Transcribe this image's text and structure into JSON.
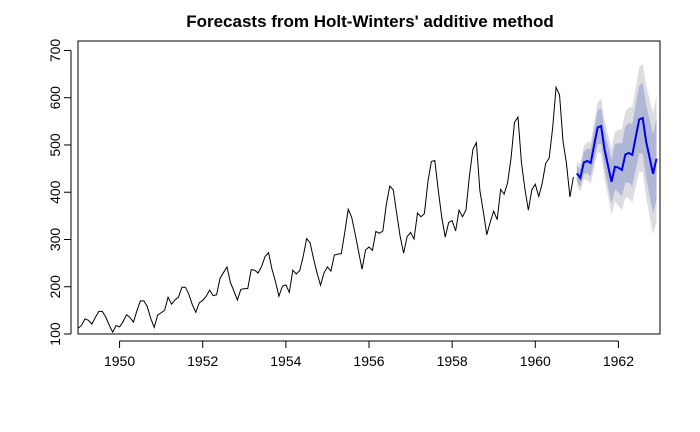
{
  "chart_data": {
    "type": "line",
    "title": "Forecasts from Holt-Winters' additive method",
    "xlabel": "",
    "ylabel": "",
    "xlim": [
      1949,
      1963
    ],
    "ylim": [
      100,
      720
    ],
    "x_ticks": [
      1950,
      1952,
      1954,
      1956,
      1958,
      1960,
      1962
    ],
    "y_ticks": [
      100,
      200,
      300,
      400,
      500,
      600,
      700
    ],
    "grid": false,
    "legend": "none",
    "colors": {
      "observed": "#000000",
      "forecast": "#0000EE",
      "band80": "#B0B6D6",
      "band95": "#DCDCE2"
    },
    "series": [
      {
        "role": "observed",
        "start": 1949,
        "frequency": 12,
        "values": [
          112,
          118,
          132,
          129,
          121,
          135,
          148,
          148,
          136,
          119,
          104,
          118,
          115,
          126,
          141,
          135,
          125,
          149,
          170,
          170,
          158,
          133,
          114,
          140,
          145,
          150,
          178,
          163,
          172,
          178,
          199,
          199,
          184,
          162,
          146,
          166,
          171,
          180,
          193,
          181,
          183,
          218,
          230,
          242,
          209,
          191,
          172,
          194,
          196,
          196,
          236,
          235,
          229,
          243,
          264,
          272,
          237,
          211,
          180,
          201,
          204,
          188,
          235,
          227,
          234,
          264,
          302,
          293,
          259,
          229,
          203,
          229,
          242,
          233,
          267,
          269,
          270,
          315,
          364,
          347,
          312,
          274,
          237,
          278,
          284,
          277,
          317,
          313,
          318,
          374,
          413,
          405,
          355,
          306,
          271,
          306,
          315,
          301,
          356,
          348,
          355,
          422,
          465,
          467,
          404,
          347,
          305,
          336,
          340,
          318,
          362,
          348,
          363,
          435,
          491,
          505,
          404,
          359,
          310,
          337,
          360,
          342,
          406,
          396,
          420,
          472,
          548,
          559,
          463,
          407,
          362,
          405,
          417,
          391,
          419,
          461,
          472,
          535,
          622,
          606,
          508,
          461,
          390,
          432
        ]
      },
      {
        "role": "forecast",
        "start": 1961,
        "frequency": 12,
        "values": [
          440,
          430,
          463,
          466,
          462,
          500,
          537,
          540,
          490,
          456,
          422,
          454,
          452,
          447,
          480,
          483,
          479,
          517,
          554,
          557,
          507,
          473,
          439,
          471
        ],
        "lower80": [
          424,
          411,
          440,
          440,
          433,
          468,
          502,
          502,
          450,
          413,
          376,
          406,
          400,
          391,
          420,
          420,
          413,
          449,
          482,
          482,
          429,
          392,
          355,
          384
        ],
        "upper80": [
          456,
          449,
          486,
          492,
          491,
          532,
          572,
          578,
          530,
          499,
          468,
          502,
          504,
          503,
          540,
          546,
          545,
          585,
          626,
          632,
          585,
          554,
          523,
          558
        ],
        "lower95": [
          415,
          401,
          428,
          426,
          418,
          451,
          484,
          482,
          429,
          391,
          352,
          380,
          372,
          361,
          389,
          387,
          378,
          413,
          444,
          443,
          388,
          350,
          310,
          338
        ],
        "upper95": [
          465,
          459,
          498,
          506,
          506,
          549,
          590,
          598,
          551,
          521,
          492,
          528,
          532,
          533,
          571,
          579,
          580,
          621,
          664,
          671,
          626,
          596,
          568,
          604
        ]
      }
    ]
  }
}
